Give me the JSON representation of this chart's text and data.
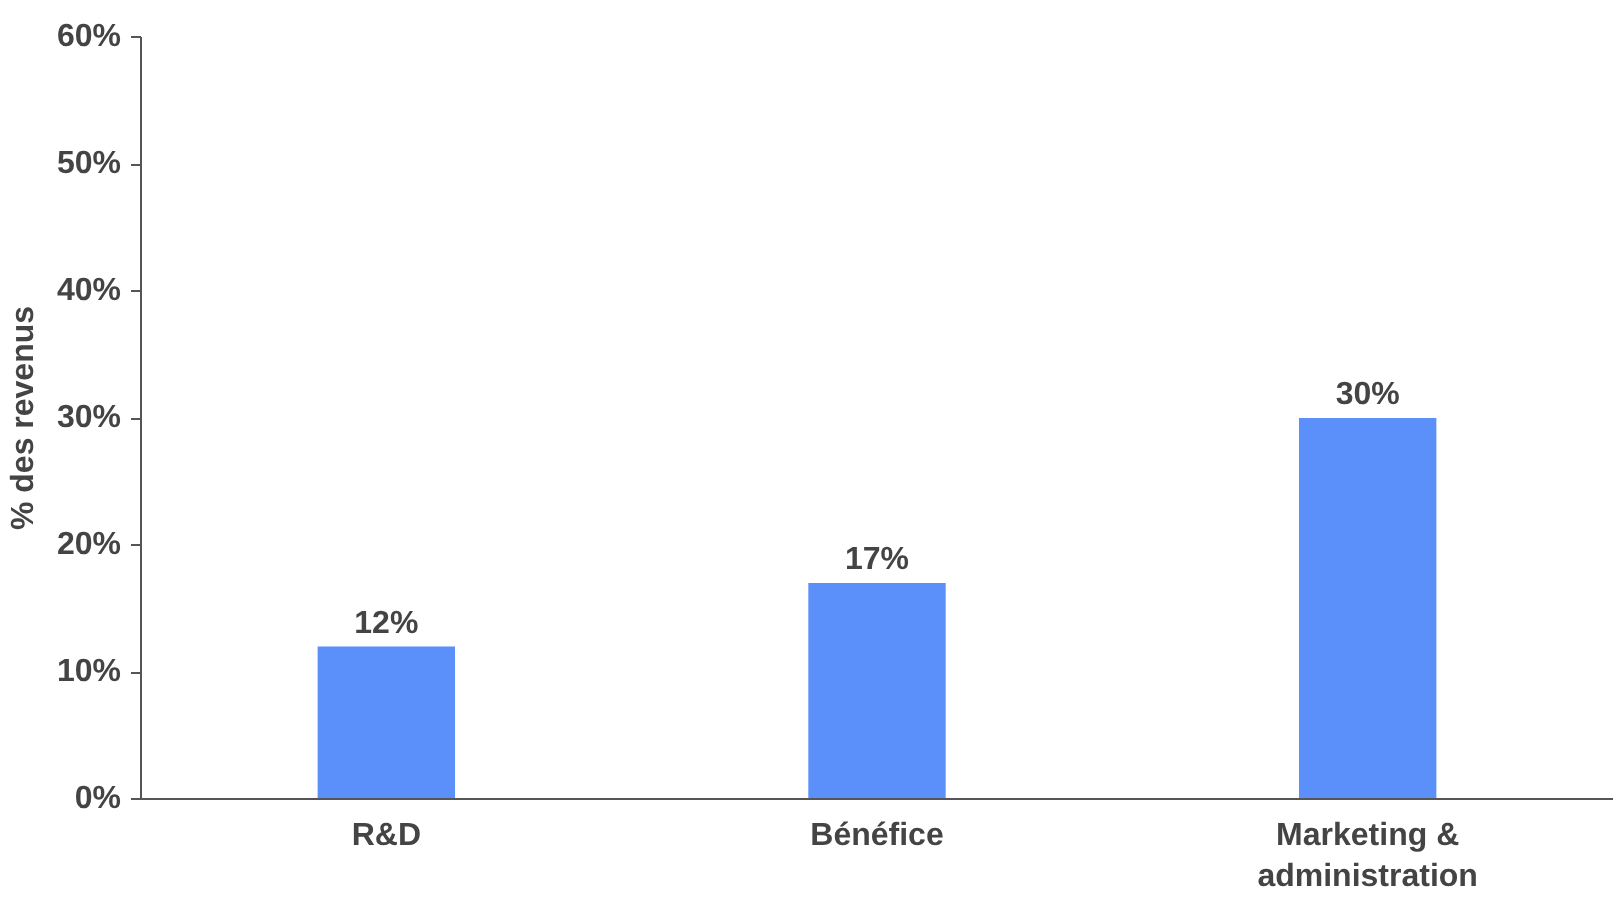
{
  "chart_data": {
    "type": "bar",
    "ylabel": "% des revenus",
    "categories": [
      "R&D",
      "Bénéfice",
      "Marketing &\nadministration"
    ],
    "values": [
      12,
      17,
      30
    ],
    "color": "#5b8ff9",
    "value_labels": [
      "12%",
      "17%",
      "30%"
    ],
    "ylim": [
      0,
      60
    ],
    "yticks": [
      {
        "value": 0,
        "label": "0%"
      },
      {
        "value": 10,
        "label": "10%"
      },
      {
        "value": 20,
        "label": "20%"
      },
      {
        "value": 30,
        "label": "30%"
      },
      {
        "value": 40,
        "label": "40%"
      },
      {
        "value": 50,
        "label": "50%"
      },
      {
        "value": 60,
        "label": "60%"
      }
    ],
    "grid": false
  }
}
